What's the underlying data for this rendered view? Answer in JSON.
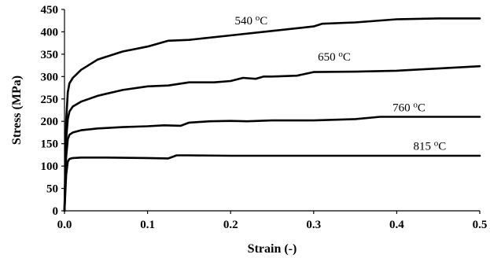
{
  "chart_data": {
    "type": "line",
    "xlabel": "Strain (-)",
    "ylabel": "Stress (MPa)",
    "xlim": [
      0,
      0.5
    ],
    "ylim": [
      0,
      450
    ],
    "xticks": [
      "0.0",
      "0.1",
      "0.2",
      "0.3",
      "0.4",
      "0.5"
    ],
    "yticks": [
      "0",
      "50",
      "100",
      "150",
      "200",
      "250",
      "300",
      "350",
      "400",
      "450"
    ],
    "grid": false,
    "line_color": "#000000",
    "series": [
      {
        "name": "540 °C",
        "label_main": "540 ",
        "label_deg": "o",
        "label_unit": "C",
        "label_at": [
          0.205,
          417
        ],
        "x": [
          0,
          0.002,
          0.004,
          0.006,
          0.01,
          0.02,
          0.04,
          0.07,
          0.1,
          0.125,
          0.15,
          0.2,
          0.25,
          0.3,
          0.31,
          0.35,
          0.4,
          0.45,
          0.5
        ],
        "y": [
          0,
          200,
          265,
          285,
          297,
          315,
          338,
          356,
          367,
          380,
          382,
          392,
          402,
          412,
          418,
          421,
          428,
          430,
          430
        ]
      },
      {
        "name": "650 °C",
        "label_main": "650 ",
        "label_deg": "o",
        "label_unit": "C",
        "label_at": [
          0.305,
          336
        ],
        "x": [
          0,
          0.002,
          0.004,
          0.006,
          0.01,
          0.02,
          0.04,
          0.07,
          0.1,
          0.125,
          0.15,
          0.18,
          0.2,
          0.215,
          0.23,
          0.24,
          0.25,
          0.28,
          0.3,
          0.35,
          0.4,
          0.45,
          0.5
        ],
        "y": [
          0,
          160,
          205,
          222,
          233,
          244,
          257,
          270,
          278,
          280,
          287,
          287,
          290,
          297,
          295,
          300,
          300,
          302,
          310,
          311,
          313,
          318,
          323
        ]
      },
      {
        "name": "760 °C",
        "label_main": "760 ",
        "label_deg": "o",
        "label_unit": "C",
        "label_at": [
          0.395,
          222
        ],
        "x": [
          0,
          0.002,
          0.004,
          0.006,
          0.01,
          0.02,
          0.04,
          0.07,
          0.1,
          0.12,
          0.14,
          0.15,
          0.175,
          0.2,
          0.22,
          0.25,
          0.3,
          0.35,
          0.38,
          0.4,
          0.45,
          0.5
        ],
        "y": [
          0,
          120,
          160,
          170,
          175,
          180,
          184,
          187,
          189,
          191,
          190,
          197,
          200,
          201,
          200,
          202,
          202,
          205,
          210,
          210,
          210,
          210
        ]
      },
      {
        "name": "815 °C",
        "label_main": "815 ",
        "label_deg": "o",
        "label_unit": "C",
        "label_at": [
          0.42,
          136
        ],
        "x": [
          0,
          0.002,
          0.004,
          0.006,
          0.01,
          0.02,
          0.05,
          0.1,
          0.125,
          0.135,
          0.15,
          0.2,
          0.25,
          0.3,
          0.4,
          0.5
        ],
        "y": [
          0,
          80,
          110,
          116,
          118,
          119,
          119,
          118,
          117,
          124,
          124,
          123,
          123,
          123,
          123,
          123
        ]
      }
    ]
  }
}
